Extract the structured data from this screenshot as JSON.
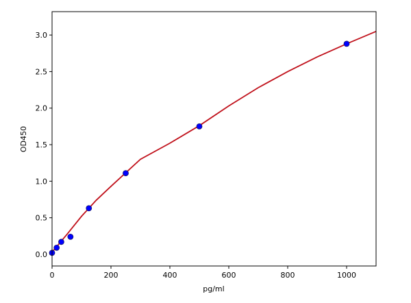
{
  "chart_data": {
    "type": "scatter",
    "x_label": "pg/ml",
    "y_label": "OD450",
    "xlim": [
      0,
      1100
    ],
    "ylim": [
      -0.16,
      3.32
    ],
    "xticks": [
      0,
      200,
      400,
      600,
      800,
      1000
    ],
    "yticks": [
      {
        "value": 0,
        "label": "0.0"
      },
      0.5,
      {
        "value": 1,
        "label": "1.0"
      },
      1.5,
      {
        "value": 2,
        "label": "2.0"
      },
      2.5,
      {
        "value": 3,
        "label": "3.0"
      }
    ],
    "grid": false,
    "series": [
      {
        "type": "scatter",
        "color": "#0000ff",
        "x": [
          0,
          15.6,
          31.25,
          62.5,
          125,
          250,
          500,
          1000
        ],
        "values": [
          0.02,
          0.09,
          0.17,
          0.24,
          0.63,
          1.11,
          1.75,
          2.88
        ]
      },
      {
        "type": "line",
        "color": "#c0101a",
        "x": [
          0,
          25,
          50,
          100,
          150,
          200,
          300,
          400,
          500,
          600,
          700,
          800,
          900,
          1000,
          1100
        ],
        "values": [
          0.03,
          0.15,
          0.27,
          0.52,
          0.74,
          0.93,
          1.3,
          1.52,
          1.76,
          2.03,
          2.28,
          2.5,
          2.7,
          2.88,
          3.05
        ]
      }
    ]
  }
}
